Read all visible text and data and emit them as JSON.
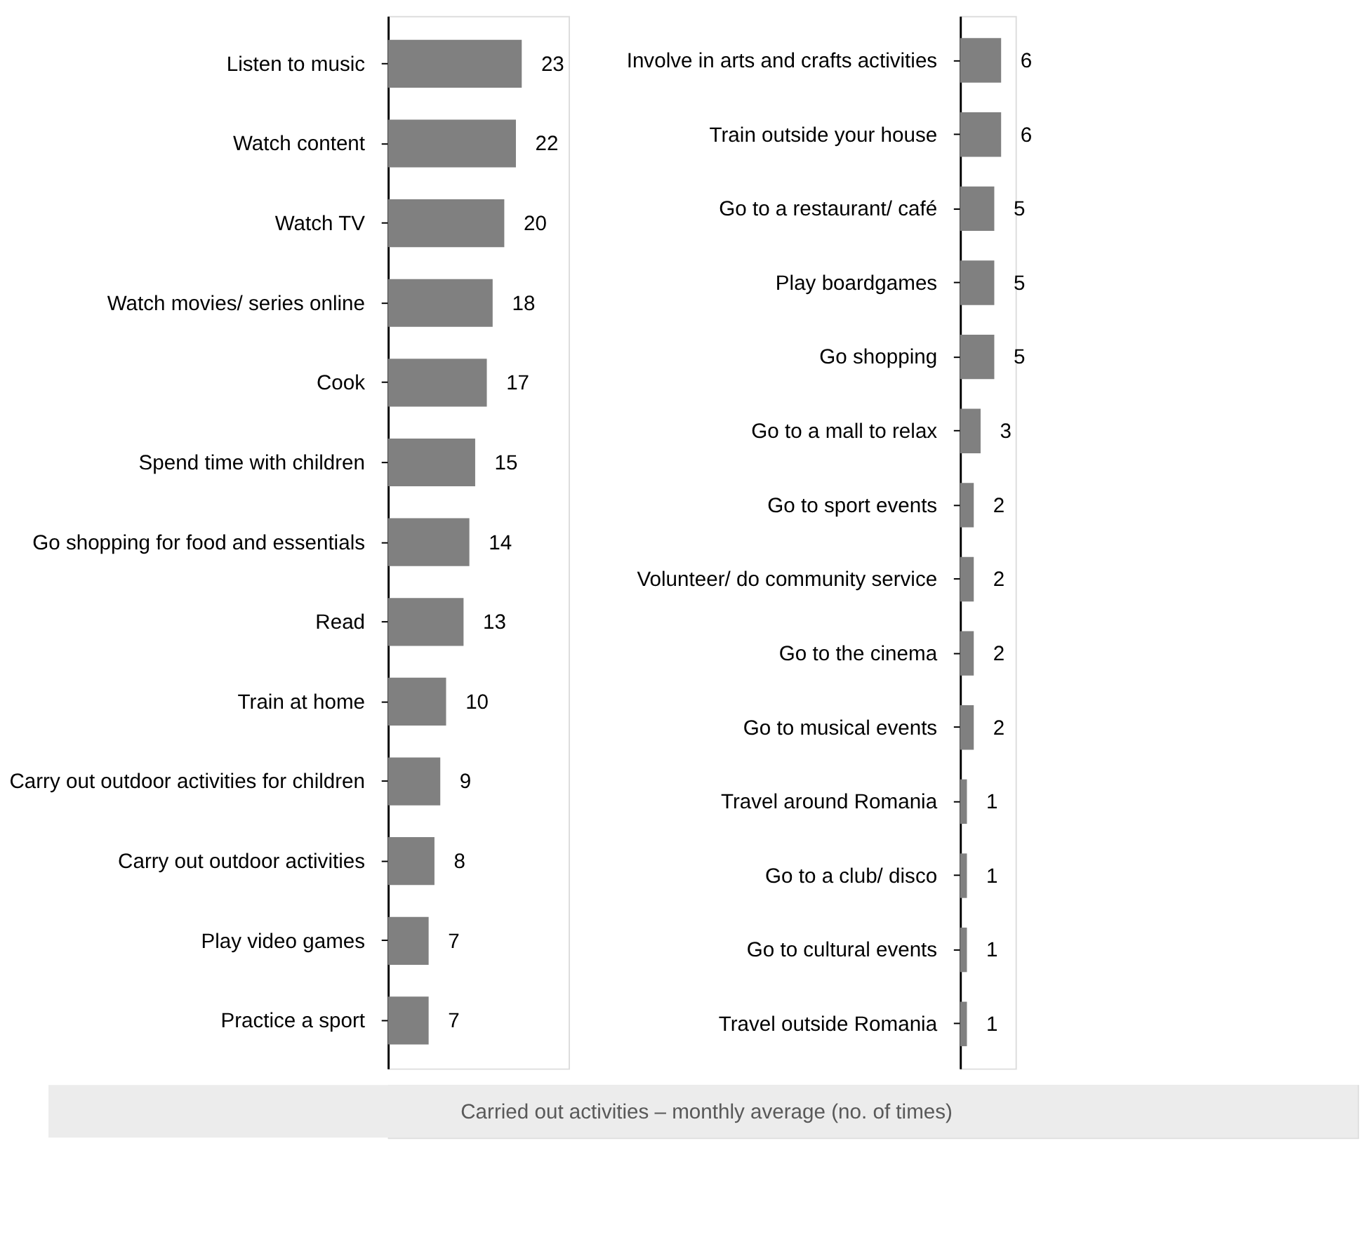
{
  "chart_data": [
    {
      "type": "bar",
      "orientation": "horizontal",
      "data_labels": true,
      "tick_labels": "y",
      "categories": [
        "Listen to music",
        "Watch content",
        "Watch TV",
        "Watch movies/ series online",
        "Cook",
        "Spend time with children",
        "Go shopping for food and essentials",
        "Read",
        "Train at home",
        "Carry out outdoor activities for children",
        "Carry out outdoor activities",
        "Play video games",
        "Practice a sport"
      ],
      "values": [
        23,
        22,
        20,
        18,
        17,
        15,
        14,
        13,
        10,
        9,
        8,
        7,
        7
      ],
      "color": "#808080",
      "annotations": [
        "Carried out activities – monthly average (no. of times)"
      ]
    },
    {
      "type": "bar",
      "orientation": "horizontal",
      "data_labels": true,
      "tick_labels": "y",
      "categories": [
        "Involve in arts and crafts activities",
        "Train outside your house",
        "Go to a restaurant/ café",
        "Play boardgames",
        "Go shopping",
        "Go to a mall to relax",
        "Go to sport events",
        "Volunteer/ do community service",
        "Go to the cinema",
        "Go to musical events",
        "Travel around Romania",
        "Go to a club/ disco",
        "Go to cultural events",
        "Travel outside Romania"
      ],
      "values": [
        6,
        6,
        5,
        5,
        5,
        3,
        2,
        2,
        2,
        2,
        1,
        1,
        1,
        1
      ],
      "color": "#808080"
    }
  ]
}
